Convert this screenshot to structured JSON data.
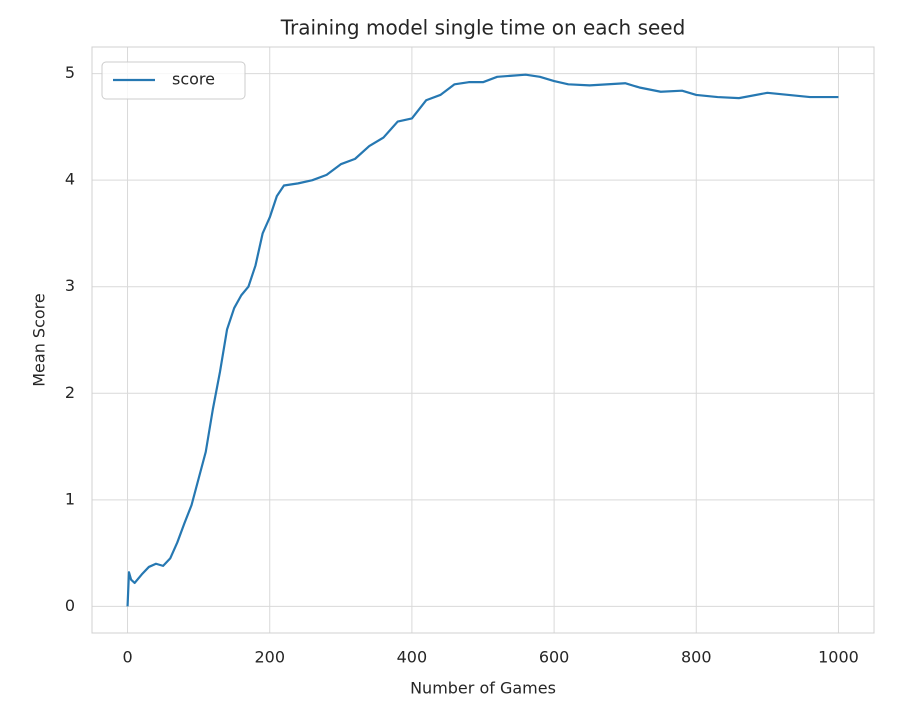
{
  "chart_data": {
    "type": "line",
    "title": "Training model single time on each seed",
    "x_label": "Number of Games",
    "y_label": "Mean Score",
    "x": [
      0,
      2,
      5,
      10,
      20,
      30,
      40,
      50,
      60,
      70,
      80,
      90,
      100,
      110,
      120,
      130,
      140,
      150,
      160,
      170,
      180,
      190,
      200,
      210,
      220,
      240,
      260,
      280,
      300,
      320,
      340,
      360,
      380,
      400,
      420,
      440,
      460,
      480,
      500,
      520,
      540,
      560,
      580,
      600,
      620,
      650,
      700,
      720,
      750,
      780,
      800,
      830,
      860,
      900,
      930,
      960,
      980,
      1000
    ],
    "series": [
      {
        "name": "score",
        "color": "#2678b2",
        "values": [
          0,
          0.32,
          0.25,
          0.22,
          0.3,
          0.37,
          0.4,
          0.38,
          0.45,
          0.6,
          0.78,
          0.95,
          1.2,
          1.45,
          1.85,
          2.2,
          2.6,
          2.8,
          2.92,
          3.0,
          3.2,
          3.5,
          3.65,
          3.85,
          3.95,
          3.97,
          4.0,
          4.05,
          4.15,
          4.2,
          4.32,
          4.4,
          4.55,
          4.58,
          4.75,
          4.8,
          4.9,
          4.92,
          4.92,
          4.97,
          4.98,
          4.99,
          4.97,
          4.93,
          4.9,
          4.89,
          4.91,
          4.87,
          4.83,
          4.84,
          4.8,
          4.78,
          4.77,
          4.82,
          4.8,
          4.78,
          4.78,
          4.78
        ]
      }
    ],
    "xlim": [
      -50,
      1050
    ],
    "ylim": [
      -0.25,
      5.25
    ],
    "xticks": [
      0,
      200,
      400,
      600,
      800,
      1000
    ],
    "yticks": [
      0,
      1,
      2,
      3,
      4,
      5
    ],
    "grid": true,
    "legend": "upper left"
  }
}
